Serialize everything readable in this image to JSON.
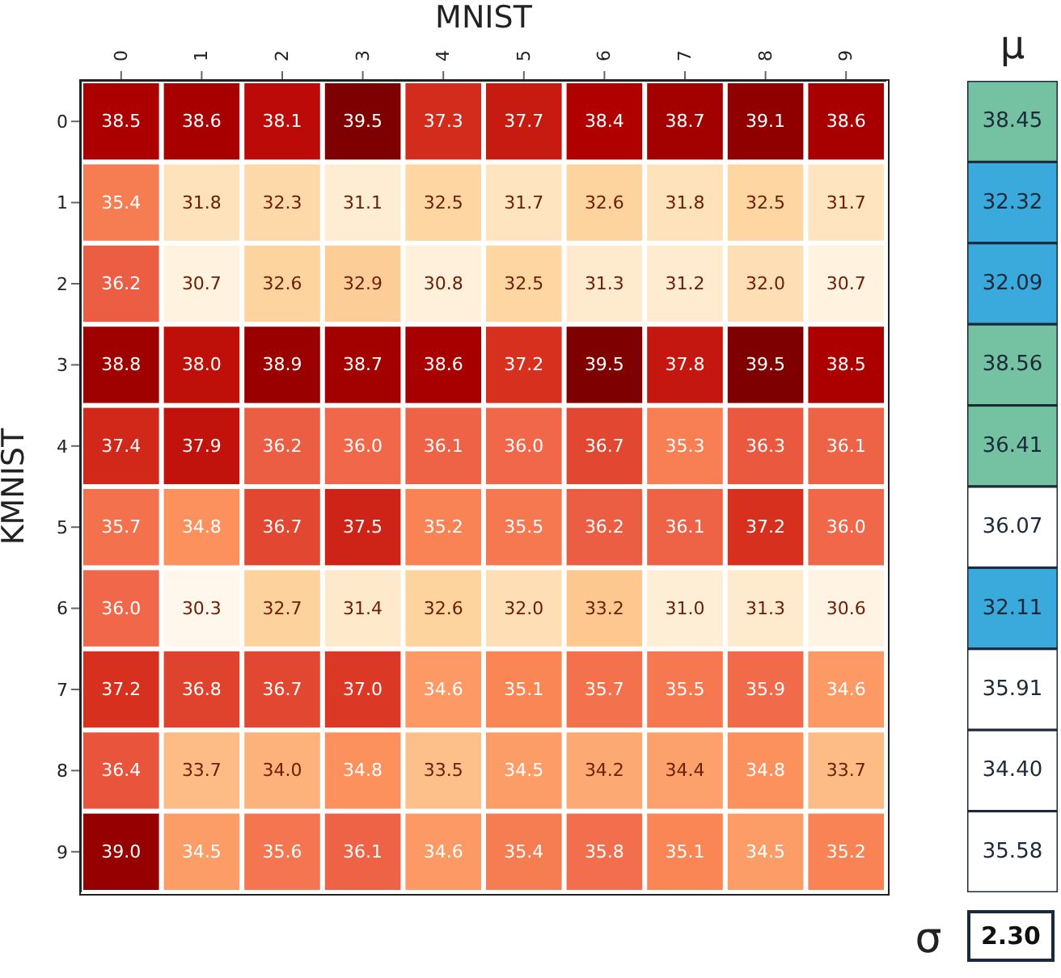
{
  "chart_data": [
    {
      "type": "heatmap",
      "title": "MNIST",
      "ylabel": "KMNIST",
      "data_labels": true,
      "cell_labels": [
        [
          "38.5",
          "38.6",
          "38.1",
          "39.5",
          "37.3",
          "37.7",
          "38.4",
          "38.7",
          "39.1",
          "38.6"
        ],
        [
          "35.4",
          "31.8",
          "32.3",
          "31.1",
          "32.5",
          "31.7",
          "32.6",
          "31.8",
          "32.5",
          "31.7"
        ],
        [
          "36.2",
          "30.7",
          "32.6",
          "32.9",
          "30.8",
          "32.5",
          "31.3",
          "31.2",
          "32.0",
          "30.7"
        ],
        [
          "38.8",
          "38.0",
          "38.9",
          "38.7",
          "38.6",
          "37.2",
          "39.5",
          "37.8",
          "39.5",
          "38.5"
        ],
        [
          "37.4",
          "37.9",
          "36.2",
          "36.0",
          "36.1",
          "36.0",
          "36.7",
          "35.3",
          "36.3",
          "36.1"
        ],
        [
          "35.7",
          "34.8",
          "36.7",
          "37.5",
          "35.2",
          "35.5",
          "36.2",
          "36.1",
          "37.2",
          "36.0"
        ],
        [
          "36.0",
          "30.3",
          "32.7",
          "31.4",
          "32.6",
          "32.0",
          "33.2",
          "31.0",
          "31.3",
          "30.6"
        ],
        [
          "37.2",
          "36.8",
          "36.7",
          "37.0",
          "34.6",
          "35.1",
          "35.7",
          "35.5",
          "35.9",
          "34.6"
        ],
        [
          "36.4",
          "33.7",
          "34.0",
          "34.8",
          "33.5",
          "34.5",
          "34.2",
          "34.4",
          "34.8",
          "33.7"
        ],
        [
          "39.0",
          "34.5",
          "35.6",
          "36.1",
          "34.6",
          "35.4",
          "35.8",
          "35.1",
          "34.5",
          "35.2"
        ]
      ],
      "categories": [
        "0",
        "1",
        "2",
        "3",
        "4",
        "5",
        "6",
        "7",
        "8",
        "9"
      ],
      "y_categories": [
        "0",
        "1",
        "2",
        "3",
        "4",
        "5",
        "6",
        "7",
        "8",
        "9"
      ],
      "cells": [
        [
          38.5,
          38.6,
          38.1,
          39.5,
          37.3,
          37.7,
          38.4,
          38.7,
          39.1,
          38.6
        ],
        [
          35.4,
          31.8,
          32.3,
          31.1,
          32.5,
          31.7,
          32.6,
          31.8,
          32.5,
          31.7
        ],
        [
          36.2,
          30.7,
          32.6,
          32.9,
          30.8,
          32.5,
          31.3,
          31.2,
          32.0,
          30.7
        ],
        [
          38.8,
          38.0,
          38.9,
          38.7,
          38.6,
          37.2,
          39.5,
          37.8,
          39.5,
          38.5
        ],
        [
          37.4,
          37.9,
          36.2,
          36.0,
          36.1,
          36.0,
          36.7,
          35.3,
          36.3,
          36.1
        ],
        [
          35.7,
          34.8,
          36.7,
          37.5,
          35.2,
          35.5,
          36.2,
          36.1,
          37.2,
          36.0
        ],
        [
          36.0,
          30.3,
          32.7,
          31.4,
          32.6,
          32.0,
          33.2,
          31.0,
          31.3,
          30.6
        ],
        [
          37.2,
          36.8,
          36.7,
          37.0,
          34.6,
          35.1,
          35.7,
          35.5,
          35.9,
          34.6
        ],
        [
          36.4,
          33.7,
          34.0,
          34.8,
          33.5,
          34.5,
          34.2,
          34.4,
          34.8,
          33.7
        ],
        [
          39.0,
          34.5,
          35.6,
          36.1,
          34.6,
          35.4,
          35.8,
          35.1,
          34.5,
          35.2
        ]
      ]
    },
    {
      "type": "heatmap",
      "categories": [
        "μ"
      ],
      "tick_labels": "x",
      "y_categories": [
        "0",
        "1",
        "2",
        "3",
        "4",
        "5",
        "6",
        "7",
        "8",
        "9"
      ],
      "cells": [
        [
          38.45
        ],
        [
          32.32
        ],
        [
          32.09
        ],
        [
          38.56
        ],
        [
          36.41
        ],
        [
          36.07
        ],
        [
          32.11
        ],
        [
          35.91
        ],
        [
          34.4
        ],
        [
          35.58
        ]
      ],
      "data_labels": true,
      "cell_labels": [
        [
          "38.45"
        ],
        [
          "32.32"
        ],
        [
          "32.09"
        ],
        [
          "38.56"
        ],
        [
          "36.41"
        ],
        [
          "36.07"
        ],
        [
          "32.11"
        ],
        [
          "35.91"
        ],
        [
          "34.40"
        ],
        [
          "35.58"
        ]
      ],
      "colors": [
        "#74c2a2",
        "#3aa9dc",
        "#3aa9dc",
        "#74c2a2",
        "#74c2a2",
        "#ffffff",
        "#3aa9dc",
        "#ffffff",
        "#ffffff",
        "#ffffff"
      ]
    },
    {
      "type": "other",
      "title": "σ",
      "annotations": [
        "2.30"
      ]
    }
  ]
}
